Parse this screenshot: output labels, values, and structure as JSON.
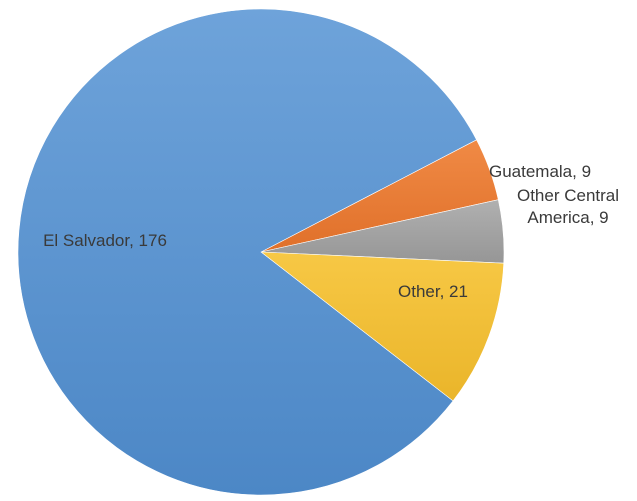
{
  "chart_data": {
    "type": "pie",
    "title": "",
    "start_angle_deg": -27.5,
    "direction": "clockwise",
    "slices": [
      {
        "key": "guatemala",
        "label_lines": [
          "Guatemala, 9"
        ],
        "name": "Guatemala",
        "value": 9,
        "color": "#ED7D31",
        "gradient": [
          "#F08A45",
          "#E0702A"
        ]
      },
      {
        "key": "other-central-america",
        "label_lines": [
          "Other Central",
          "America, 9"
        ],
        "name": "Other Central America",
        "value": 9,
        "color": "#A5A5A5",
        "gradient": [
          "#B0B0B0",
          "#969696"
        ]
      },
      {
        "key": "other",
        "label_lines": [
          "Other, 21"
        ],
        "name": "Other",
        "value": 21,
        "color": "#FFC000",
        "gradient": [
          "#F7C845",
          "#EAB52A"
        ]
      },
      {
        "key": "el-salvador",
        "label_lines": [
          "El Salvador, 176"
        ],
        "name": "El Salvador",
        "value": 176,
        "color": "#5B9BD5",
        "gradient": [
          "#6EA3DA",
          "#4C87C6"
        ]
      }
    ]
  }
}
